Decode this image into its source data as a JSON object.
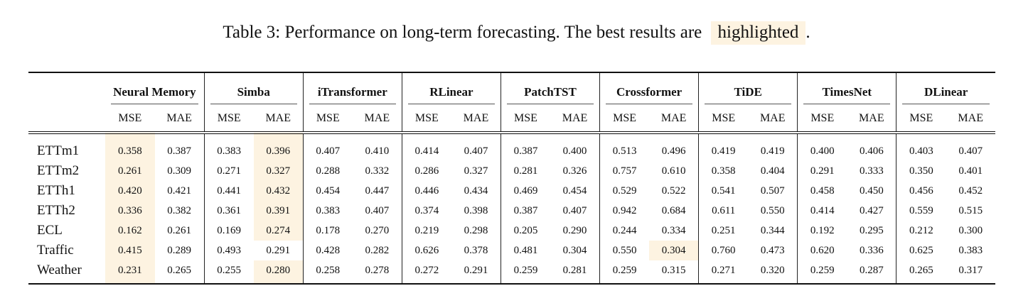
{
  "caption": {
    "prefix": "Table 3: Performance on long-term forecasting. The best results are",
    "highlighted_word": "highlighted",
    "suffix": "."
  },
  "models": [
    "Neural Memory",
    "Simba",
    "iTransformer",
    "RLinear",
    "PatchTST",
    "Crossformer",
    "TiDE",
    "TimesNet",
    "DLinear"
  ],
  "metrics": [
    "MSE",
    "MAE"
  ],
  "highlight_color": "#fdf3e1",
  "rows": [
    {
      "dataset": "ETTm1",
      "values": [
        "0.358",
        "0.387",
        "0.383",
        "0.396",
        "0.407",
        "0.410",
        "0.414",
        "0.407",
        "0.387",
        "0.400",
        "0.513",
        "0.496",
        "0.419",
        "0.419",
        "0.400",
        "0.406",
        "0.403",
        "0.407"
      ],
      "best": [
        0,
        1
      ]
    },
    {
      "dataset": "ETTm2",
      "values": [
        "0.261",
        "0.309",
        "0.271",
        "0.327",
        "0.288",
        "0.332",
        "0.286",
        "0.327",
        "0.281",
        "0.326",
        "0.757",
        "0.610",
        "0.358",
        "0.404",
        "0.291",
        "0.333",
        "0.350",
        "0.401"
      ],
      "best": [
        0,
        1
      ]
    },
    {
      "dataset": "ETTh1",
      "values": [
        "0.420",
        "0.421",
        "0.441",
        "0.432",
        "0.454",
        "0.447",
        "0.446",
        "0.434",
        "0.469",
        "0.454",
        "0.529",
        "0.522",
        "0.541",
        "0.507",
        "0.458",
        "0.450",
        "0.456",
        "0.452"
      ],
      "best": [
        0,
        1
      ]
    },
    {
      "dataset": "ETTh2",
      "values": [
        "0.336",
        "0.382",
        "0.361",
        "0.391",
        "0.383",
        "0.407",
        "0.374",
        "0.398",
        "0.387",
        "0.407",
        "0.942",
        "0.684",
        "0.611",
        "0.550",
        "0.414",
        "0.427",
        "0.559",
        "0.515"
      ],
      "best": [
        0,
        1
      ]
    },
    {
      "dataset": "ECL",
      "values": [
        "0.162",
        "0.261",
        "0.169",
        "0.274",
        "0.178",
        "0.270",
        "0.219",
        "0.298",
        "0.205",
        "0.290",
        "0.244",
        "0.334",
        "0.251",
        "0.344",
        "0.192",
        "0.295",
        "0.212",
        "0.300"
      ],
      "best": [
        0,
        1
      ]
    },
    {
      "dataset": "Traffic",
      "values": [
        "0.415",
        "0.289",
        "0.493",
        "0.291",
        "0.428",
        "0.282",
        "0.626",
        "0.378",
        "0.481",
        "0.304",
        "0.550",
        "0.304",
        "0.760",
        "0.473",
        "0.620",
        "0.336",
        "0.625",
        "0.383"
      ],
      "best": [
        0,
        5
      ]
    },
    {
      "dataset": "Weather",
      "values": [
        "0.231",
        "0.265",
        "0.255",
        "0.280",
        "0.258",
        "0.278",
        "0.272",
        "0.291",
        "0.259",
        "0.281",
        "0.259",
        "0.315",
        "0.271",
        "0.320",
        "0.259",
        "0.287",
        "0.265",
        "0.317"
      ],
      "best": [
        0,
        1
      ]
    }
  ]
}
